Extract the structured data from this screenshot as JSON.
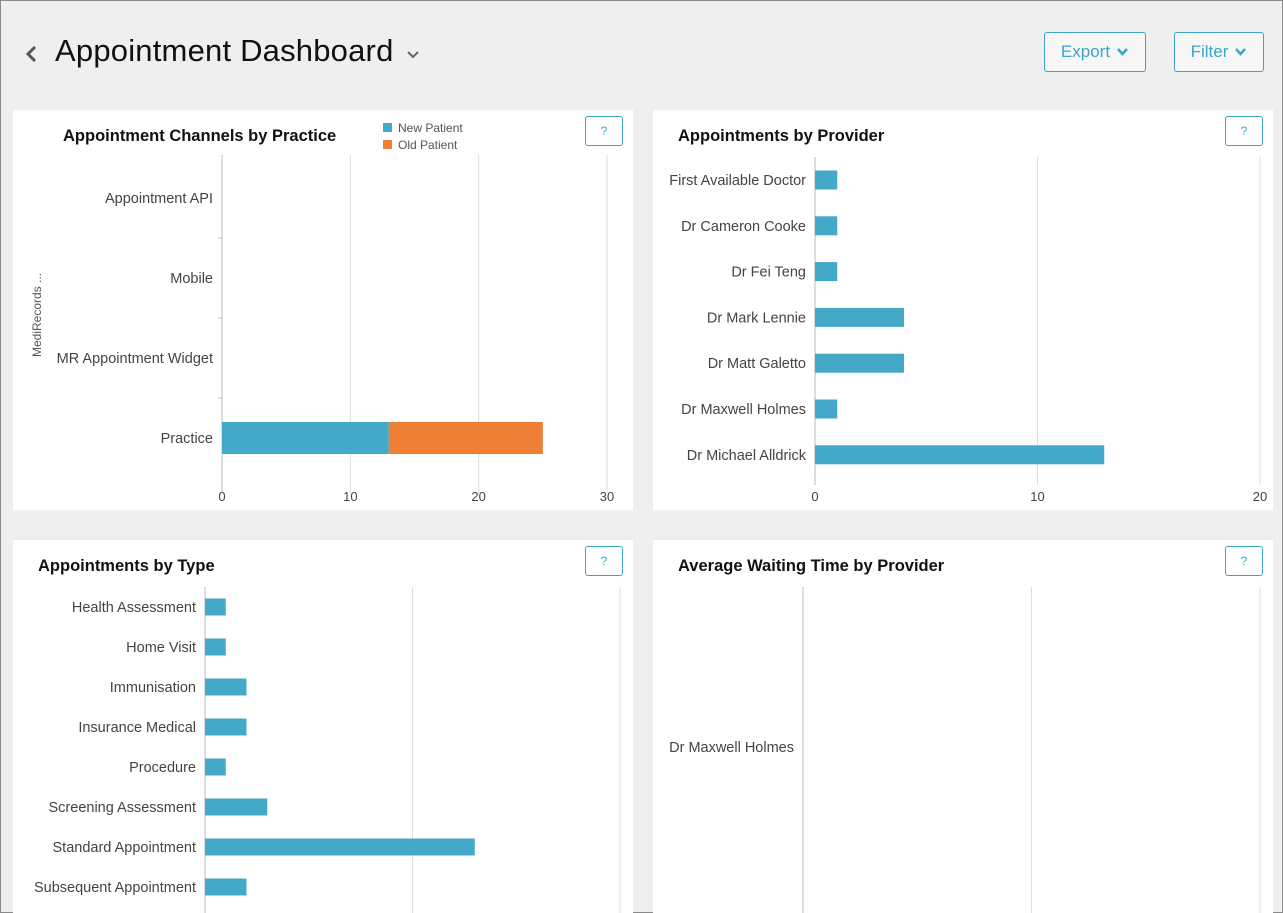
{
  "header": {
    "title": "Appointment Dashboard",
    "export_label": "Export",
    "filter_label": "Filter"
  },
  "panels": {
    "channels": {
      "title": "Appointment Channels by Practice",
      "help": "?"
    },
    "provider": {
      "title": "Appointments by Provider",
      "help": "?"
    },
    "type": {
      "title": "Appointments by Type",
      "help": "?"
    },
    "waiting": {
      "title": "Average Waiting Time by Provider",
      "help": "?"
    }
  },
  "colors": {
    "accent": "#3ca5c6",
    "new_patient": "#44a9c9",
    "old_patient": "#f07f36",
    "gridline": "#dddddd"
  },
  "chart_data": [
    {
      "id": "channels",
      "type": "bar",
      "orientation": "horizontal",
      "stacked": true,
      "title": "Appointment Channels by Practice",
      "ylabel": "MediRecords ...",
      "categories": [
        "Appointment API",
        "Mobile",
        "MR Appointment Widget",
        "Practice"
      ],
      "series": [
        {
          "name": "New Patient",
          "values": [
            0,
            0,
            0,
            13
          ]
        },
        {
          "name": "Old Patient",
          "values": [
            0,
            0,
            0,
            12
          ]
        }
      ],
      "xlim": [
        0,
        30
      ],
      "xticks": [
        0,
        10,
        20,
        30
      ],
      "legend": "top"
    },
    {
      "id": "provider",
      "type": "bar",
      "orientation": "horizontal",
      "title": "Appointments by Provider",
      "categories": [
        "First Available Doctor",
        "Dr Cameron Cooke",
        "Dr Fei Teng",
        "Dr Mark Lennie",
        "Dr Matt Galetto",
        "Dr Maxwell Holmes",
        "Dr Michael Alldrick"
      ],
      "values": [
        1,
        1,
        1,
        4,
        4,
        1,
        13
      ],
      "xlim": [
        0,
        20
      ],
      "xticks": [
        0,
        10,
        20
      ]
    },
    {
      "id": "type",
      "type": "bar",
      "orientation": "horizontal",
      "title": "Appointments by Type",
      "categories": [
        "Health Assessment",
        "Home Visit",
        "Immunisation",
        "Insurance Medical",
        "Procedure",
        "Screening Assessment",
        "Standard Appointment",
        "Subsequent Appointment"
      ],
      "values": [
        1,
        1,
        2,
        2,
        1,
        3,
        13,
        2
      ],
      "xlim": [
        0,
        20
      ],
      "xticks": []
    },
    {
      "id": "waiting",
      "type": "bar",
      "orientation": "horizontal",
      "title": "Average Waiting Time by Provider",
      "categories": [
        "Dr Maxwell Holmes"
      ],
      "values": [
        0
      ],
      "xlim": [
        0,
        2
      ],
      "xticks": []
    }
  ]
}
